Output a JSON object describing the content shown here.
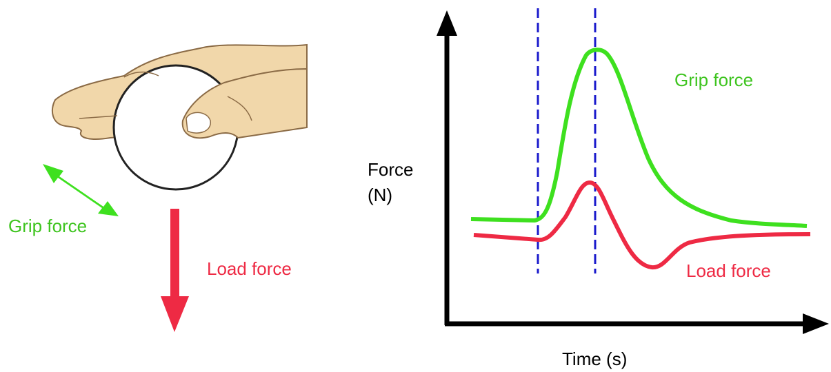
{
  "hand": {
    "grip_label": "Grip force",
    "load_label": "Load force"
  },
  "graph": {
    "y_label_line1": "Force",
    "y_label_line2": "(N)",
    "x_label": "Time (s)",
    "grip_label": "Grip force",
    "load_label": "Load force"
  }
}
